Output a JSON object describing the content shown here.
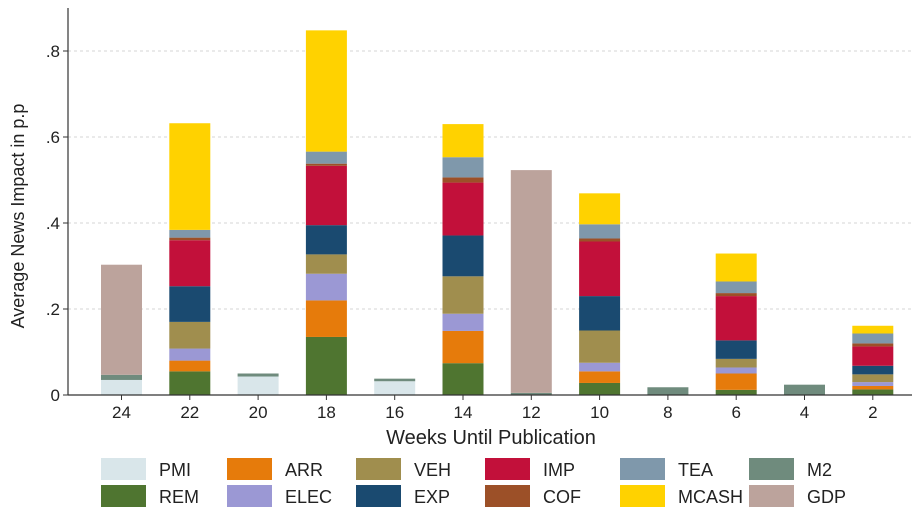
{
  "chart_data": {
    "type": "bar",
    "stacked": true,
    "xlabel": "Weeks Until Publication",
    "ylabel": "Average News Impact in p.p",
    "categories": [
      "24",
      "22",
      "20",
      "18",
      "16",
      "14",
      "12",
      "10",
      "8",
      "6",
      "4",
      "2"
    ],
    "ylim": [
      0,
      0.9
    ],
    "yticks": [
      0,
      0.2,
      0.4,
      0.6,
      0.8
    ],
    "ytick_labels": [
      "0",
      ".2",
      ".4",
      ".6",
      ".8"
    ],
    "grid": true,
    "legend_position": "bottom",
    "series": [
      {
        "name": "PMI",
        "color": "#d9e6ea",
        "values": [
          0.035,
          0,
          0.043,
          0,
          0.032,
          0,
          0,
          0,
          0,
          0,
          0,
          0
        ]
      },
      {
        "name": "REM",
        "color": "#4f7530",
        "values": [
          0,
          0.055,
          0,
          0.135,
          0,
          0.074,
          0,
          0.028,
          0,
          0.012,
          0,
          0.013
        ]
      },
      {
        "name": "ARR",
        "color": "#e67b0b",
        "values": [
          0,
          0.025,
          0,
          0.085,
          0,
          0.075,
          0,
          0.027,
          0,
          0.038,
          0,
          0.008
        ]
      },
      {
        "name": "ELEC",
        "color": "#9b98d4",
        "values": [
          0,
          0.028,
          0,
          0.062,
          0,
          0.04,
          0,
          0.02,
          0,
          0.014,
          0,
          0.009
        ]
      },
      {
        "name": "VEH",
        "color": "#a08e4e",
        "values": [
          0,
          0.062,
          0,
          0.045,
          0,
          0.087,
          0,
          0.075,
          0,
          0.02,
          0,
          0.018
        ]
      },
      {
        "name": "EXP",
        "color": "#1a4a70",
        "values": [
          0,
          0.083,
          0,
          0.068,
          0,
          0.095,
          0,
          0.08,
          0,
          0.043,
          0,
          0.02
        ]
      },
      {
        "name": "IMP",
        "color": "#c2103a",
        "values": [
          0,
          0.107,
          0,
          0.138,
          0,
          0.123,
          0,
          0.127,
          0,
          0.103,
          0,
          0.045
        ]
      },
      {
        "name": "COF",
        "color": "#9c5028",
        "values": [
          0,
          0.006,
          0,
          0.005,
          0,
          0.012,
          0,
          0.007,
          0,
          0.007,
          0,
          0.007
        ]
      },
      {
        "name": "TEA",
        "color": "#7f98ab",
        "values": [
          0,
          0.018,
          0,
          0.028,
          0,
          0.047,
          0,
          0.033,
          0,
          0.027,
          0,
          0.023
        ]
      },
      {
        "name": "MCASH",
        "color": "#ffd200",
        "values": [
          0,
          0.248,
          0,
          0.282,
          0,
          0.077,
          0,
          0.072,
          0,
          0.065,
          0,
          0.018
        ]
      },
      {
        "name": "M2",
        "color": "#6f8b7d",
        "values": [
          0.012,
          0,
          0.007,
          0,
          0.006,
          0,
          0.005,
          0,
          0.018,
          0,
          0.024,
          0
        ]
      },
      {
        "name": "GDP",
        "color": "#bca39c",
        "values": [
          0.256,
          0,
          0,
          0,
          0,
          0,
          0.518,
          0,
          0,
          0,
          0,
          0
        ]
      }
    ]
  }
}
